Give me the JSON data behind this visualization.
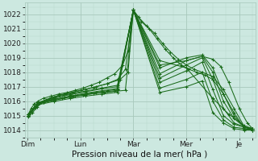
{
  "background_color": "#cce8e0",
  "plot_bg_color": "#cce8e0",
  "line_color": "#1a6b1a",
  "grid_color_major": "#a8c8bc",
  "grid_color_minor": "#b8d8cc",
  "ylabel_ticks": [
    1014,
    1015,
    1016,
    1017,
    1018,
    1019,
    1020,
    1021,
    1022
  ],
  "xlim": [
    -0.05,
    4.3
  ],
  "ylim": [
    1013.5,
    1022.8
  ],
  "xlabel": "Pression niveau de la mer( hPa )",
  "xtick_labels": [
    "Dim",
    "Lun",
    "Mar",
    "Mer",
    "Je"
  ],
  "xtick_positions": [
    0,
    1,
    2,
    3,
    4
  ],
  "tick_fontsize": 6.5,
  "label_fontsize": 7.5,
  "series": [
    [
      0.02,
      1015.1,
      0.07,
      1015.5,
      0.13,
      1015.8,
      0.2,
      1016.0,
      0.3,
      1016.2,
      0.45,
      1016.35,
      0.6,
      1016.5,
      0.75,
      1016.6,
      0.9,
      1016.75,
      1.05,
      1016.9,
      1.2,
      1017.1,
      1.35,
      1017.3,
      1.5,
      1017.6,
      1.65,
      1017.9,
      1.8,
      1018.5,
      1.9,
      1019.5,
      2.0,
      1022.3,
      2.1,
      1021.8,
      2.25,
      1021.2,
      2.4,
      1020.7,
      2.55,
      1020.0,
      2.7,
      1019.4,
      2.85,
      1018.9,
      3.0,
      1018.5,
      3.15,
      1018.2,
      3.3,
      1018.0,
      3.5,
      1017.7,
      3.7,
      1016.8,
      3.9,
      1015.5,
      4.1,
      1014.2,
      4.25,
      1014.0
    ],
    [
      0.02,
      1015.1,
      0.15,
      1015.7,
      0.35,
      1016.1,
      0.6,
      1016.4,
      0.85,
      1016.6,
      1.1,
      1016.8,
      1.3,
      1017.0,
      1.5,
      1017.2,
      1.7,
      1017.5,
      1.85,
      1018.2,
      2.0,
      1022.3,
      2.15,
      1021.5,
      2.3,
      1021.0,
      2.45,
      1020.3,
      2.6,
      1019.6,
      2.75,
      1019.0,
      2.9,
      1018.5,
      3.05,
      1018.2,
      3.2,
      1018.0,
      3.35,
      1017.8,
      3.5,
      1017.5,
      3.7,
      1016.5,
      3.9,
      1015.2,
      4.1,
      1014.1,
      4.25,
      1014.0
    ],
    [
      0.02,
      1015.1,
      0.2,
      1015.85,
      0.45,
      1016.25,
      0.7,
      1016.5,
      1.0,
      1016.75,
      1.25,
      1016.95,
      1.5,
      1017.2,
      1.75,
      1017.5,
      1.9,
      1018.0,
      2.0,
      1022.3,
      2.5,
      1018.8,
      3.0,
      1018.3,
      3.5,
      1016.2,
      3.8,
      1015.1,
      4.1,
      1014.3,
      4.25,
      1014.1
    ],
    [
      0.02,
      1015.1,
      0.2,
      1015.9,
      0.5,
      1016.25,
      0.8,
      1016.5,
      1.1,
      1016.7,
      1.4,
      1016.9,
      1.7,
      1017.1,
      2.0,
      1022.3,
      2.5,
      1018.5,
      3.0,
      1018.8,
      3.3,
      1019.1,
      3.5,
      1018.9,
      3.65,
      1018.4,
      3.8,
      1017.3,
      4.0,
      1015.5,
      4.15,
      1014.5,
      4.25,
      1014.1
    ],
    [
      0.02,
      1015.1,
      0.2,
      1015.9,
      0.5,
      1016.2,
      0.8,
      1016.45,
      1.1,
      1016.65,
      1.4,
      1016.85,
      1.7,
      1017.0,
      2.0,
      1022.3,
      2.5,
      1018.3,
      3.0,
      1019.0,
      3.3,
      1019.2,
      3.5,
      1018.3,
      3.7,
      1016.5,
      3.9,
      1015.0,
      4.1,
      1014.2,
      4.25,
      1014.1
    ],
    [
      0.02,
      1015.0,
      0.2,
      1015.85,
      0.5,
      1016.1,
      0.8,
      1016.35,
      1.1,
      1016.55,
      1.4,
      1016.72,
      1.7,
      1016.88,
      2.0,
      1022.3,
      2.5,
      1017.9,
      3.0,
      1018.8,
      3.3,
      1019.1,
      3.5,
      1018.0,
      3.7,
      1016.0,
      3.9,
      1014.8,
      4.1,
      1014.2,
      4.25,
      1014.1
    ],
    [
      0.02,
      1015.0,
      0.2,
      1015.8,
      0.5,
      1016.05,
      0.8,
      1016.28,
      1.1,
      1016.45,
      1.4,
      1016.6,
      1.7,
      1016.75,
      2.0,
      1022.3,
      2.5,
      1017.6,
      3.0,
      1018.5,
      3.3,
      1019.0,
      3.5,
      1017.5,
      3.7,
      1015.5,
      3.9,
      1014.5,
      4.1,
      1014.2,
      4.25,
      1014.1
    ],
    [
      0.02,
      1015.0,
      0.2,
      1015.75,
      0.5,
      1015.98,
      0.8,
      1016.18,
      1.1,
      1016.35,
      1.4,
      1016.48,
      1.7,
      1016.62,
      2.0,
      1022.3,
      2.5,
      1017.3,
      3.0,
      1018.1,
      3.3,
      1018.7,
      3.5,
      1016.8,
      3.7,
      1015.0,
      3.9,
      1014.4,
      4.1,
      1014.2,
      4.25,
      1014.1
    ],
    [
      0.02,
      1015.0,
      0.15,
      1015.55,
      0.3,
      1015.95,
      0.5,
      1016.1,
      0.7,
      1016.25,
      0.9,
      1016.38,
      1.1,
      1016.5,
      1.3,
      1016.62,
      1.5,
      1016.72,
      1.7,
      1016.82,
      2.0,
      1022.3,
      2.5,
      1016.9,
      3.0,
      1017.5,
      3.3,
      1018.0,
      3.5,
      1016.0,
      3.7,
      1014.7,
      3.9,
      1014.2,
      4.1,
      1014.1,
      4.25,
      1014.0
    ],
    [
      0.02,
      1014.9,
      0.1,
      1015.2,
      0.18,
      1015.6,
      0.3,
      1015.95,
      0.45,
      1016.1,
      0.65,
      1016.22,
      0.85,
      1016.33,
      1.05,
      1016.43,
      1.25,
      1016.52,
      1.45,
      1016.6,
      1.65,
      1016.68,
      1.85,
      1016.75,
      2.0,
      1022.3,
      2.5,
      1016.6,
      3.0,
      1017.0,
      3.3,
      1017.4,
      3.5,
      1015.2,
      3.7,
      1014.5,
      3.9,
      1014.1,
      4.1,
      1014.0,
      4.25,
      1014.0
    ]
  ]
}
